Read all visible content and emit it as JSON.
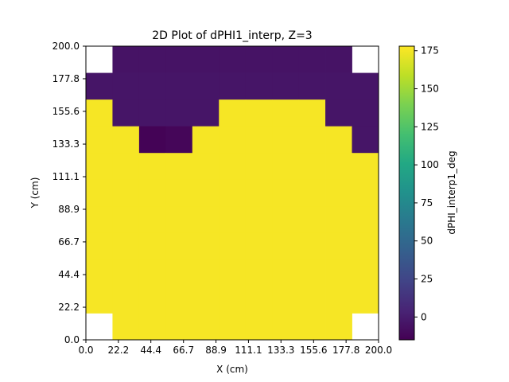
{
  "chart_data": {
    "type": "heatmap",
    "title": "2D Plot of dPHI1_interp, Z=3",
    "xlabel": "X (cm)",
    "ylabel": "Y (cm)",
    "colorbar_label": "dPHI_interp1_deg",
    "colormap": "viridis",
    "xlim": [
      0,
      200
    ],
    "ylim": [
      0,
      200
    ],
    "clim": [
      -15,
      178
    ],
    "x_tick_labels": [
      "0.0",
      "22.2",
      "44.4",
      "66.7",
      "88.9",
      "111.1",
      "133.3",
      "155.6",
      "177.8",
      "200.0"
    ],
    "y_tick_labels": [
      "0.0",
      "22.2",
      "44.4",
      "66.7",
      "88.9",
      "111.1",
      "133.3",
      "155.6",
      "177.8",
      "200.0"
    ],
    "colorbar_ticks": [
      0,
      25,
      50,
      75,
      100,
      125,
      150,
      175
    ],
    "grid_size": 11,
    "cell_size_cm": 18.18,
    "grid_rows_top_to_bottom": [
      [
        null,
        -5,
        -5,
        -5,
        -5,
        -5,
        -5,
        -5,
        -5,
        -5,
        null
      ],
      [
        -4,
        -4,
        -4,
        -4,
        -4,
        -4,
        -4,
        -4,
        -4,
        -4,
        -4
      ],
      [
        176,
        -4,
        -4,
        -4,
        -4,
        176,
        176,
        176,
        176,
        -4,
        -4
      ],
      [
        176,
        176,
        -14,
        -12,
        176,
        176,
        176,
        176,
        176,
        176,
        -4
      ],
      [
        176,
        176,
        176,
        176,
        176,
        176,
        176,
        176,
        176,
        176,
        176
      ],
      [
        176,
        176,
        176,
        176,
        176,
        176,
        176,
        176,
        176,
        176,
        176
      ],
      [
        176,
        176,
        176,
        176,
        176,
        176,
        176,
        176,
        176,
        176,
        176
      ],
      [
        176,
        176,
        176,
        176,
        176,
        176,
        176,
        176,
        176,
        176,
        176
      ],
      [
        176,
        176,
        176,
        176,
        176,
        176,
        176,
        176,
        176,
        176,
        176
      ],
      [
        176,
        176,
        176,
        176,
        176,
        176,
        176,
        176,
        176,
        176,
        176
      ],
      [
        null,
        176,
        176,
        176,
        176,
        176,
        176,
        176,
        176,
        176,
        null
      ]
    ]
  }
}
